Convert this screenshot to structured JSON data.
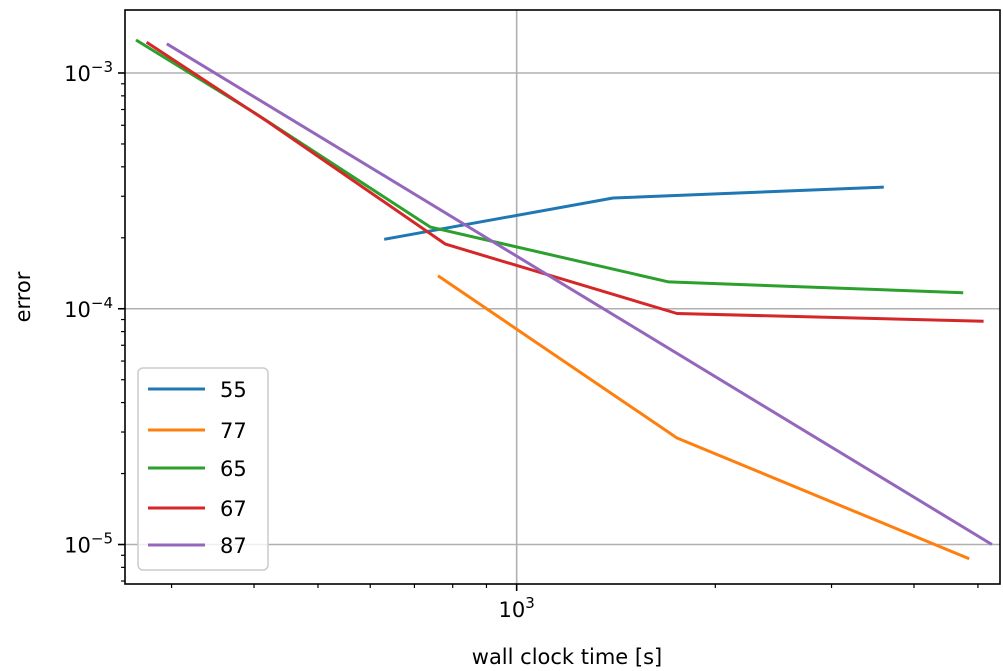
{
  "chart_data": {
    "type": "line",
    "xscale": "log",
    "yscale": "log",
    "xlabel": "wall clock time [s]",
    "ylabel": "error",
    "xlim": [
      255,
      5400
    ],
    "ylim": [
      6.8e-06,
      0.00185
    ],
    "grid": true,
    "legend_position": "lower-left",
    "x_major_ticks": [
      {
        "value": 1000,
        "label_base": "10",
        "label_exp": "3"
      }
    ],
    "y_major_ticks": [
      {
        "value": 0.001,
        "label_base": "10",
        "label_exp": "−3"
      },
      {
        "value": 0.0001,
        "label_base": "10",
        "label_exp": "−4"
      },
      {
        "value": 1e-05,
        "label_base": "10",
        "label_exp": "−5"
      }
    ],
    "x_minor_ticks": [
      300,
      400,
      500,
      600,
      700,
      800,
      900,
      2000,
      3000,
      4000,
      5000
    ],
    "y_minor_ticks": [
      7e-06,
      8e-06,
      9e-06,
      2e-05,
      3e-05,
      4e-05,
      5e-05,
      6e-05,
      7e-05,
      8e-05,
      9e-05,
      0.0002,
      0.0003,
      0.0004,
      0.0005,
      0.0006,
      0.0007,
      0.0008,
      0.0009
    ],
    "series": [
      {
        "name": "55",
        "color": "#1f77b4",
        "x": [
          630,
          1400,
          3600
        ],
        "y": [
          0.000197,
          0.000295,
          0.000328
        ]
      },
      {
        "name": "77",
        "color": "#ff7f0e",
        "x": [
          760,
          1750,
          4850
        ],
        "y": [
          0.000138,
          2.83e-05,
          8.7e-06
        ]
      },
      {
        "name": "65",
        "color": "#2ca02c",
        "x": [
          265,
          400,
          740,
          1700,
          4750
        ],
        "y": [
          0.00138,
          0.00068,
          0.000222,
          0.00013,
          0.000117
        ]
      },
      {
        "name": "67",
        "color": "#d62728",
        "x": [
          275,
          420,
          780,
          1750,
          5100
        ],
        "y": [
          0.00135,
          0.00062,
          0.000188,
          9.55e-05,
          8.85e-05
        ]
      },
      {
        "name": "87",
        "color": "#9467bd",
        "x": [
          295,
          5250
        ],
        "y": [
          0.00133,
          1e-05
        ]
      }
    ]
  }
}
